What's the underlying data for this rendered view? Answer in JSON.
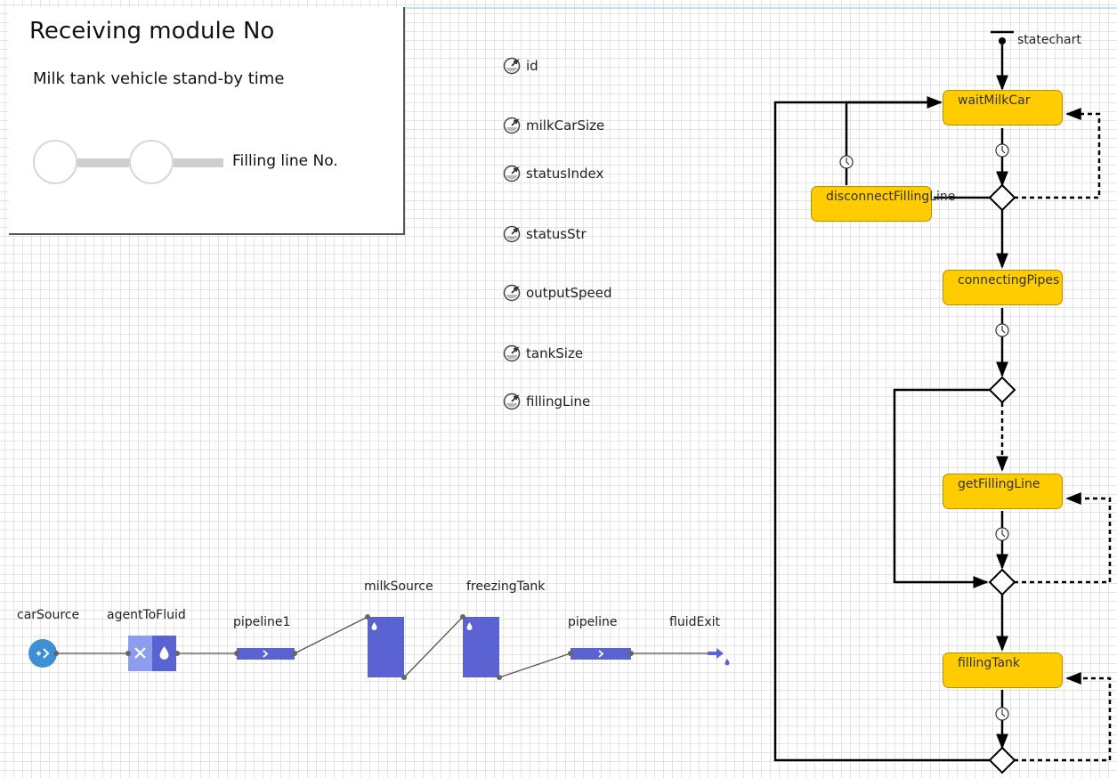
{
  "panel": {
    "title": "Receiving module No",
    "subtitle": "Milk tank vehicle stand-by time",
    "line_label": "Filling line No."
  },
  "parameters": [
    "id",
    "milkCarSize",
    "statusIndex",
    "statusStr",
    "outputSpeed",
    "tankSize",
    "fillingLine"
  ],
  "flowchart": {
    "carSource": "carSource",
    "agentToFluid": "agentToFluid",
    "pipeline1": "pipeline1",
    "milkSource": "milkSource",
    "freezingTank": "freezingTank",
    "pipeline": "pipeline",
    "fluidExit": "fluidExit"
  },
  "statechart": {
    "entry_label": "statechart",
    "states": {
      "waitMilkCar": "waitMilkCar",
      "disconnectFillingLine": "disconnectFillingLine",
      "connectingPipes": "connectingPipes",
      "getFillingLine": "getFillingLine",
      "fillingTank": "fillingTank"
    }
  },
  "colors": {
    "state_fill": "#ffcc00",
    "block_blue": "#5b63d3",
    "source_blue": "#3f8fd4",
    "grid": "#e4e4e4"
  },
  "icons": [
    "parameter-icon",
    "timeout-icon",
    "branch-icon",
    "fluid-drop-icon"
  ]
}
